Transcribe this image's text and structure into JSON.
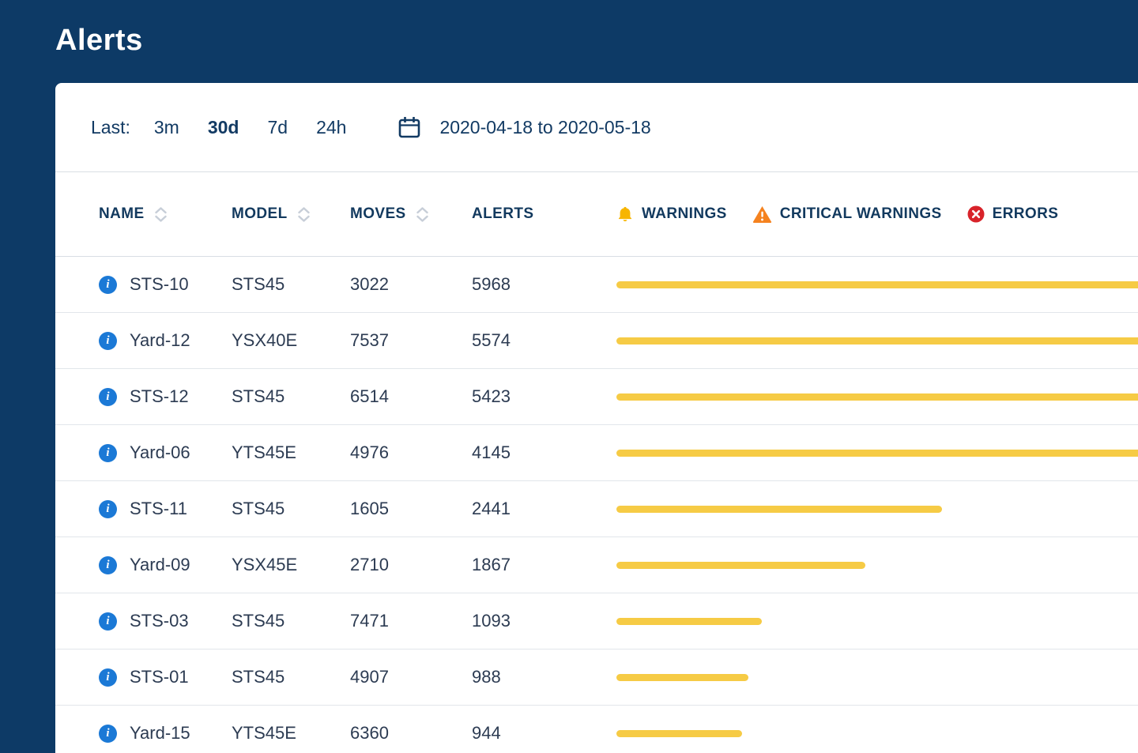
{
  "page": {
    "title": "Alerts"
  },
  "filters": {
    "label": "Last:",
    "options": [
      {
        "label": "3m",
        "selected": false
      },
      {
        "label": "30d",
        "selected": true
      },
      {
        "label": "7d",
        "selected": false
      },
      {
        "label": "24h",
        "selected": false
      }
    ],
    "date_range": "2020-04-18 to 2020-05-18"
  },
  "table": {
    "columns": [
      {
        "key": "name",
        "label": "NAME",
        "sortable": true
      },
      {
        "key": "model",
        "label": "MODEL",
        "sortable": true
      },
      {
        "key": "moves",
        "label": "MOVES",
        "sortable": true
      },
      {
        "key": "alerts",
        "label": "ALERTS",
        "sortable": false
      }
    ],
    "legend": [
      {
        "id": "warnings",
        "label": "WARNINGS",
        "icon": "bell-icon",
        "color": "#F7B500"
      },
      {
        "id": "critical-warnings",
        "label": "CRITICAL WARNINGS",
        "icon": "warning-triangle-icon",
        "color": "#F5821F"
      },
      {
        "id": "errors",
        "label": "ERRORS",
        "icon": "error-icon",
        "color": "#D8232A"
      }
    ],
    "bar_color": "#F6CB45",
    "rows": [
      {
        "name": "STS-10",
        "model": "STS45",
        "moves": "3022",
        "alerts": "5968"
      },
      {
        "name": "Yard-12",
        "model": "YSX40E",
        "moves": "7537",
        "alerts": "5574"
      },
      {
        "name": "STS-12",
        "model": "STS45",
        "moves": "6514",
        "alerts": "5423"
      },
      {
        "name": "Yard-06",
        "model": "YTS45E",
        "moves": "4976",
        "alerts": "4145"
      },
      {
        "name": "STS-11",
        "model": "STS45",
        "moves": "1605",
        "alerts": "2441"
      },
      {
        "name": "Yard-09",
        "model": "YSX45E",
        "moves": "2710",
        "alerts": "1867"
      },
      {
        "name": "STS-03",
        "model": "STS45",
        "moves": "7471",
        "alerts": "1093"
      },
      {
        "name": "STS-01",
        "model": "STS45",
        "moves": "4907",
        "alerts": "988"
      },
      {
        "name": "Yard-15",
        "model": "YTS45E",
        "moves": "6360",
        "alerts": "944"
      }
    ]
  }
}
